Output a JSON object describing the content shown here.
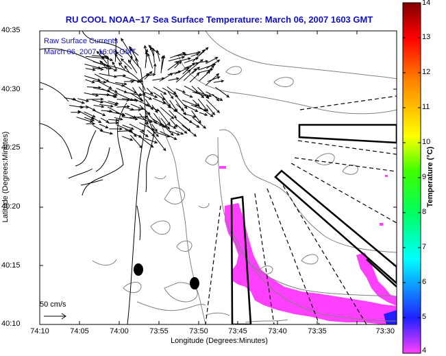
{
  "title": "RU COOL  NOAA−17  Sea Surface Temperature:  March 06, 2007 1603 GMT",
  "legend": {
    "line1": "Raw Surface Currents",
    "line2": "March 06, 2007 16:00 GMT"
  },
  "scale": {
    "label": "50 cm/s"
  },
  "axes": {
    "xlabel": "Longitude (Degrees:Minutes)",
    "ylabel": "Latitude (Degrees:Minutes)",
    "xticks": [
      "74:10",
      "74:05",
      "74:00",
      "73:55",
      "73:50",
      "73:45",
      "73:40",
      "73:35",
      "73:30"
    ],
    "yticks": [
      "40:35",
      "40:30",
      "40:25",
      "40:20",
      "40:15",
      "40:10"
    ]
  },
  "colorbar": {
    "label": "Temperature (°C)",
    "ticks": [
      "14",
      "13",
      "12",
      "11",
      "10",
      "9",
      "8",
      "7",
      "6",
      "5",
      "4"
    ],
    "min": 4,
    "max": 14,
    "colors": [
      "#ff40ff",
      "#2020ff",
      "#00ffff",
      "#00ff00",
      "#ffff00",
      "#ff8000",
      "#ff0000",
      "#800000"
    ]
  },
  "features": {
    "sst_patch_color": "#ff40ff",
    "coastline_color": "#000000",
    "contour_color": "#808080"
  }
}
